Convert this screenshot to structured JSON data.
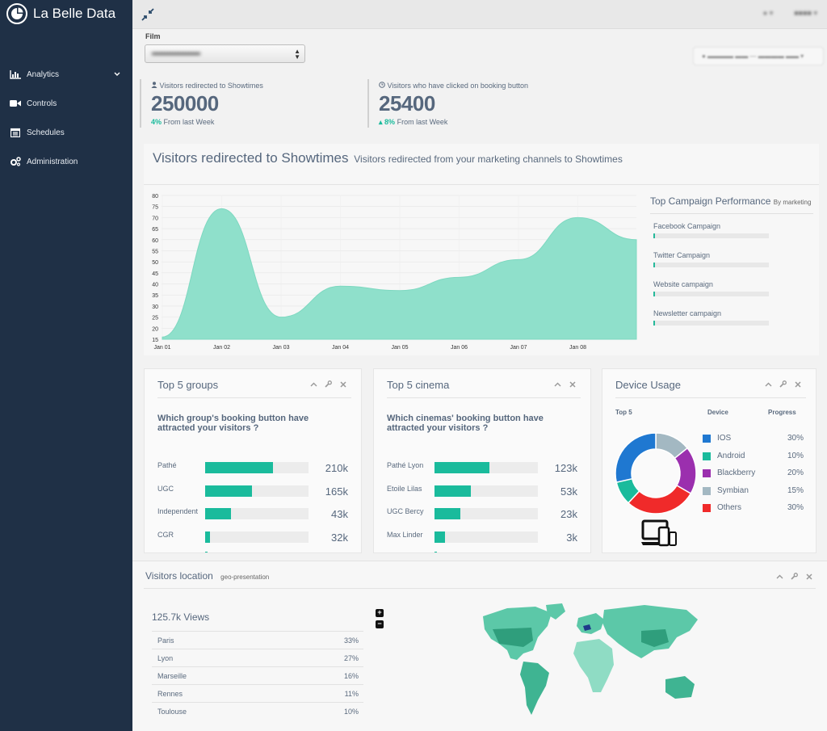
{
  "app": {
    "brand": "La Belle Data",
    "accent": "#1abb9c",
    "sidebar_bg": "#1f3046"
  },
  "sidebar": {
    "items": [
      {
        "label": "Analytics",
        "icon": "bar-chart-icon",
        "expandable": true
      },
      {
        "label": "Controls",
        "icon": "video-camera-icon"
      },
      {
        "label": "Schedules",
        "icon": "calendar-icon"
      },
      {
        "label": "Administration",
        "icon": "gears-icon"
      }
    ]
  },
  "filters": {
    "film_label": "Film"
  },
  "stats": [
    {
      "label": "Visitors redirected to Showtimes",
      "icon": "user-icon",
      "value": "250000",
      "change": "4%",
      "change_text": "From last Week"
    },
    {
      "label": "Visitors who have clicked on booking button",
      "icon": "clock-icon",
      "value": "25400",
      "change": "8%",
      "change_text": "From last Week"
    }
  ],
  "main_chart": {
    "title": "Visitors redirected to Showtimes",
    "subtitle": "Visitors redirected from your marketing channels to Showtimes"
  },
  "chart_data": {
    "type": "area",
    "categories": [
      "Jan 01",
      "Jan 02",
      "Jan 03",
      "Jan 04",
      "Jan 05",
      "Jan 06",
      "Jan 07",
      "Jan 08"
    ],
    "series": [
      {
        "values": [
          16,
          74,
          25,
          39,
          37,
          43,
          51,
          70
        ]
      }
    ],
    "ylim": [
      15,
      80
    ],
    "y_ticks": [
      80,
      75,
      70,
      65,
      60,
      55,
      50,
      45,
      40,
      35,
      30,
      25,
      20,
      15
    ],
    "end_value": 60,
    "grid": true,
    "color": "#8fe0cb"
  },
  "campaigns": {
    "title": "Top Campaign Performance",
    "subtitle": "By marketing",
    "items": [
      {
        "label": "Facebook Campaign",
        "value": 0.01
      },
      {
        "label": "Twitter Campaign",
        "value": 0.01
      },
      {
        "label": "Website campaign",
        "value": 0.01
      },
      {
        "label": "Newsletter campaign",
        "value": 0.01
      }
    ]
  },
  "top_groups": {
    "title": "Top 5 groups",
    "question": "Which group's booking button have attracted your visitors ?",
    "rows": [
      {
        "label": "Pathé",
        "value": "210k",
        "ratio": 0.66
      },
      {
        "label": "UGC",
        "value": "165k",
        "ratio": 0.45
      },
      {
        "label": "Independent",
        "value": "43k",
        "ratio": 0.25
      },
      {
        "label": "CGR",
        "value": "32k",
        "ratio": 0.05
      }
    ]
  },
  "top_cinemas": {
    "title": "Top 5 cinema",
    "question": "Which cinemas' booking button have attracted your visitors ?",
    "rows": [
      {
        "label": "Pathé Lyon",
        "value": "123k",
        "ratio": 0.53
      },
      {
        "label": "Etoile Lilas",
        "value": "53k",
        "ratio": 0.35
      },
      {
        "label": "UGC Bercy",
        "value": "23k",
        "ratio": 0.25
      },
      {
        "label": "Max Linder",
        "value": "3k",
        "ratio": 0.1
      }
    ]
  },
  "device_usage": {
    "title": "Device Usage",
    "col_top": "Top 5",
    "col_device": "Device",
    "col_progress": "Progress",
    "items": [
      {
        "name": "IOS",
        "percent": "30%",
        "value": 30,
        "color": "#1f78d1"
      },
      {
        "name": "Android",
        "percent": "10%",
        "value": 10,
        "color": "#1abb9c"
      },
      {
        "name": "Blackberry",
        "percent": "20%",
        "value": 20,
        "color": "#9b2fae"
      },
      {
        "name": "Symbian",
        "percent": "15%",
        "value": 15,
        "color": "#a3b8c2"
      },
      {
        "name": "Others",
        "percent": "30%",
        "value": 30,
        "color": "#f02a2a"
      }
    ]
  },
  "location": {
    "title": "Visitors location",
    "subtitle": "geo-presentation",
    "views": "125.7k Views",
    "rows": [
      {
        "city": "Paris",
        "percent": "33%"
      },
      {
        "city": "Lyon",
        "percent": "27%"
      },
      {
        "city": "Marseille",
        "percent": "16%"
      },
      {
        "city": "Rennes",
        "percent": "11%"
      },
      {
        "city": "Toulouse",
        "percent": "10%"
      }
    ],
    "zoom_in": "+",
    "zoom_out": "−"
  }
}
